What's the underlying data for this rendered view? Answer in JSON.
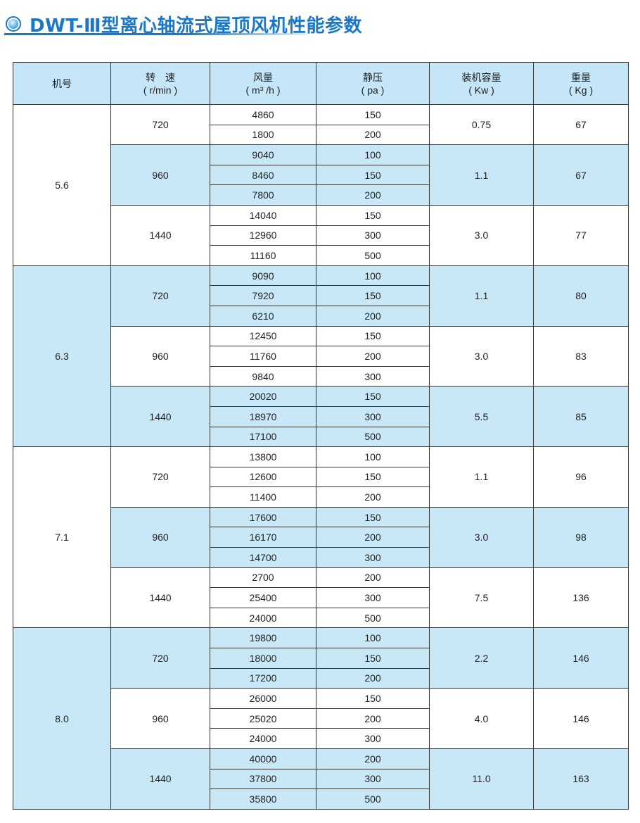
{
  "title": "DWT-Ⅲ型离心轴流式屋顶风机性能参数",
  "colors": {
    "title": "#1a78c6",
    "shade": "#c8e8f8"
  },
  "headers": [
    {
      "name": "机号",
      "unit": ""
    },
    {
      "name": "转　速",
      "unit": "( r/min )"
    },
    {
      "name": "风量",
      "unit": "( m³ /h )"
    },
    {
      "name": "静压",
      "unit": "( pa )"
    },
    {
      "name": "装机容量",
      "unit": "( Kw )"
    },
    {
      "name": "重量",
      "unit": "( Kg )"
    }
  ],
  "models": [
    {
      "model": "5.6",
      "speeds": [
        {
          "rpm": "720",
          "power": "0.75",
          "weight": "67",
          "rows": [
            [
              "4860",
              "150"
            ],
            [
              "1800",
              "200"
            ]
          ]
        },
        {
          "rpm": "960",
          "power": "1.1",
          "weight": "67",
          "rows": [
            [
              "9040",
              "100"
            ],
            [
              "8460",
              "150"
            ],
            [
              "7800",
              "200"
            ]
          ]
        },
        {
          "rpm": "1440",
          "power": "3.0",
          "weight": "77",
          "rows": [
            [
              "14040",
              "150"
            ],
            [
              "12960",
              "300"
            ],
            [
              "11160",
              "500"
            ]
          ]
        }
      ]
    },
    {
      "model": "6.3",
      "speeds": [
        {
          "rpm": "720",
          "power": "1.1",
          "weight": "80",
          "rows": [
            [
              "9090",
              "100"
            ],
            [
              "7920",
              "150"
            ],
            [
              "6210",
              "200"
            ]
          ]
        },
        {
          "rpm": "960",
          "power": "3.0",
          "weight": "83",
          "rows": [
            [
              "12450",
              "150"
            ],
            [
              "11760",
              "200"
            ],
            [
              "9840",
              "300"
            ]
          ]
        },
        {
          "rpm": "1440",
          "power": "5.5",
          "weight": "85",
          "rows": [
            [
              "20020",
              "150"
            ],
            [
              "18970",
              "300"
            ],
            [
              "17100",
              "500"
            ]
          ]
        }
      ]
    },
    {
      "model": "7.1",
      "speeds": [
        {
          "rpm": "720",
          "power": "1.1",
          "weight": "96",
          "rows": [
            [
              "13800",
              "100"
            ],
            [
              "12600",
              "150"
            ],
            [
              "11400",
              "200"
            ]
          ]
        },
        {
          "rpm": "960",
          "power": "3.0",
          "weight": "98",
          "rows": [
            [
              "17600",
              "150"
            ],
            [
              "16170",
              "200"
            ],
            [
              "14700",
              "300"
            ]
          ]
        },
        {
          "rpm": "1440",
          "power": "7.5",
          "weight": "136",
          "rows": [
            [
              "2700",
              "200"
            ],
            [
              "25400",
              "300"
            ],
            [
              "24000",
              "500"
            ]
          ]
        }
      ]
    },
    {
      "model": "8.0",
      "speeds": [
        {
          "rpm": "720",
          "power": "2.2",
          "weight": "146",
          "rows": [
            [
              "19800",
              "100"
            ],
            [
              "18000",
              "150"
            ],
            [
              "17200",
              "200"
            ]
          ]
        },
        {
          "rpm": "960",
          "power": "4.0",
          "weight": "146",
          "rows": [
            [
              "26000",
              "150"
            ],
            [
              "25020",
              "200"
            ],
            [
              "24000",
              "300"
            ]
          ]
        },
        {
          "rpm": "1440",
          "power": "11.0",
          "weight": "163",
          "rows": [
            [
              "40000",
              "200"
            ],
            [
              "37800",
              "300"
            ],
            [
              "35800",
              "500"
            ]
          ]
        }
      ]
    }
  ]
}
